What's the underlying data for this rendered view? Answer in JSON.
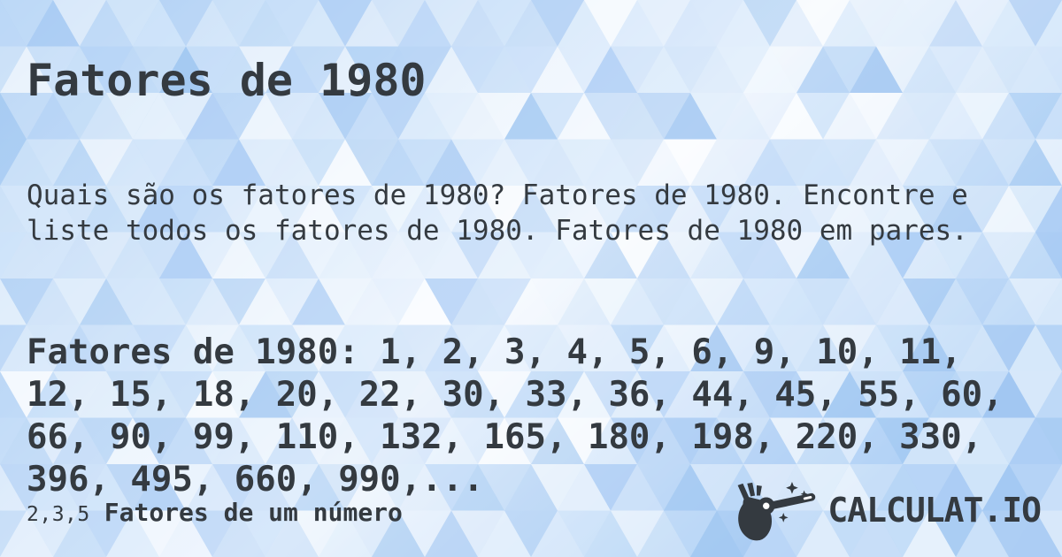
{
  "page": {
    "title": "Fatores de 1980"
  },
  "description": {
    "text": "Quais são os fatores de 1980? Fatores de 1980. Encontre e\nliste todos os fatores de 1980. Fatores de 1980 em pares."
  },
  "main": {
    "label": "Fatores de 1980:",
    "factors": [
      1,
      2,
      3,
      4,
      5,
      6,
      9,
      10,
      11,
      12,
      15,
      18,
      20,
      22,
      30,
      33,
      36,
      44,
      45,
      55,
      60,
      66,
      90,
      99,
      110,
      132,
      165,
      180,
      198,
      220,
      330,
      396,
      495,
      660,
      990
    ],
    "ellipsis": ",...",
    "text": "Fatores de 1980: 1, 2, 3, 4, 5, 6, 9, 10, 11,\n12, 15, 18, 20, 22, 30, 33, 36, 44, 45, 55, 60,\n66, 90, 99, 110, 132, 165, 180, 198, 220, 330,\n396, 495, 660, 990,..."
  },
  "footer": {
    "category_icon_text": "2,3,5",
    "category_label": "Fatores de um número",
    "logo_brand": "CALCULAT.IO"
  },
  "colors": {
    "text": "#343a40",
    "background_palette": [
      "#ffffff",
      "#f4f9fe",
      "#e9f2fc",
      "#dcebfb",
      "#cde2f9",
      "#bcd7f7",
      "#abccf4",
      "#9ec5f1"
    ],
    "background_base_from": "#a6cbf3",
    "background_base_mid": "#eef5fd",
    "background_base_to": "#aed0f5"
  }
}
